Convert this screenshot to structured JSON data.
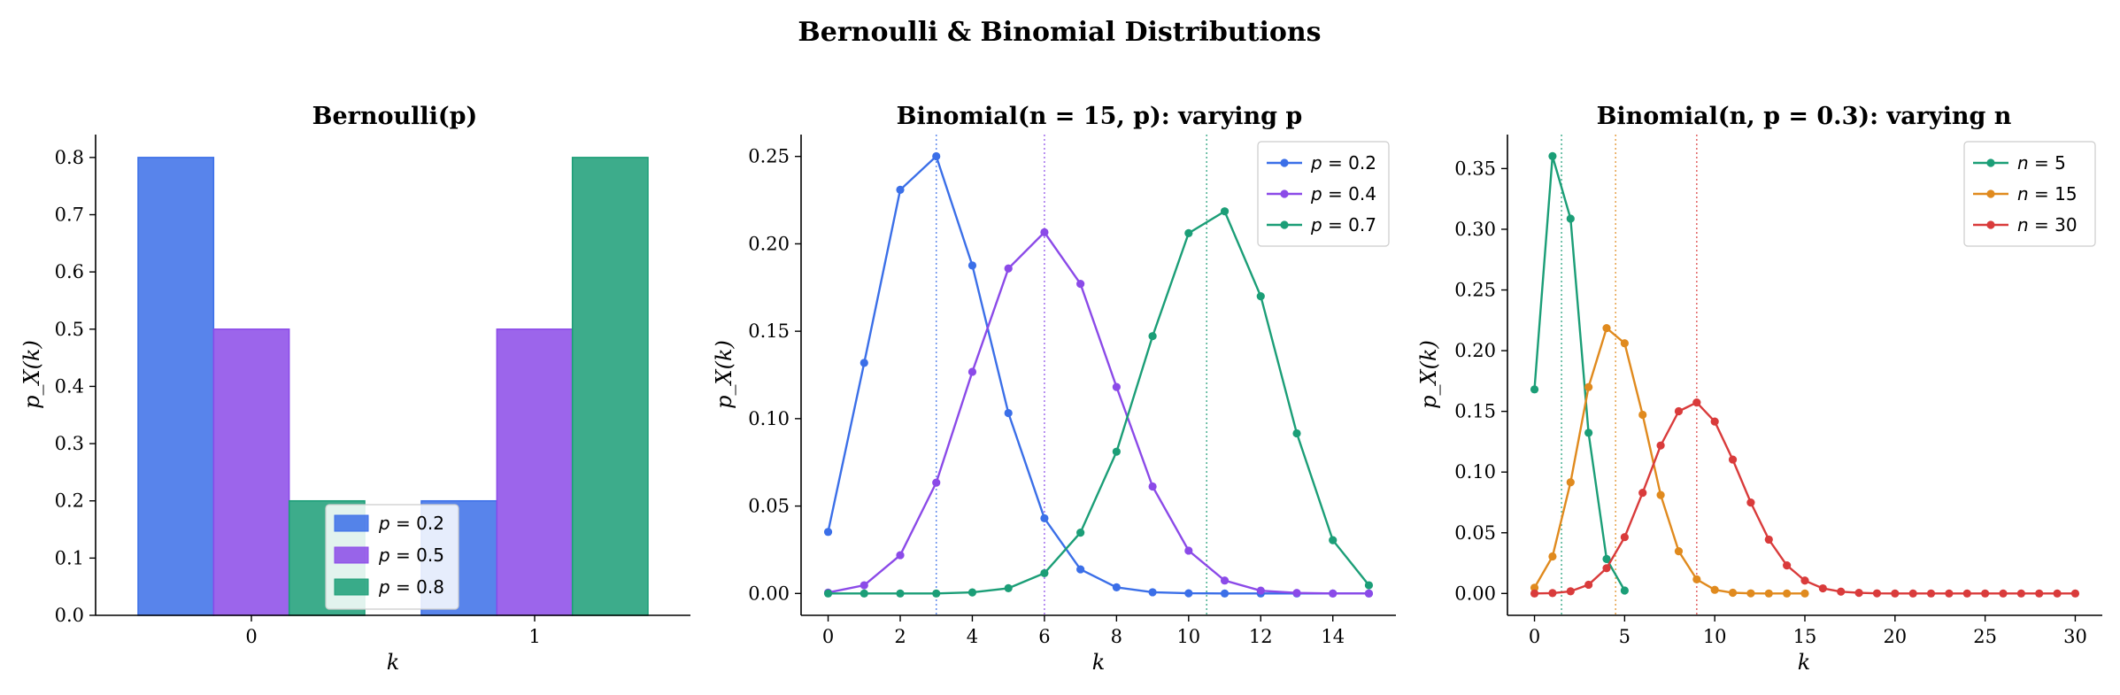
{
  "figure": {
    "title": "Bernoulli & Binomial Distributions"
  },
  "colors": {
    "blue": "#3b6fe8",
    "purple": "#8b4ae8",
    "green": "#1b9e77",
    "orange": "#e08a1e",
    "red": "#d93b3b"
  },
  "chart_data": [
    {
      "type": "bar",
      "title": "Bernoulli(p)",
      "xlabel": "k",
      "ylabel": "p_X(k)",
      "categories": [
        "0",
        "1"
      ],
      "ylim": [
        0,
        0.84
      ],
      "yticks": [
        "0.0",
        "0.1",
        "0.2",
        "0.3",
        "0.4",
        "0.5",
        "0.6",
        "0.7",
        "0.8"
      ],
      "legend_position": "lower center",
      "series": [
        {
          "name": "p = 0.2",
          "color": "blue",
          "values": [
            0.8,
            0.2
          ]
        },
        {
          "name": "p = 0.5",
          "color": "purple",
          "values": [
            0.5,
            0.5
          ]
        },
        {
          "name": "p = 0.8",
          "color": "green",
          "values": [
            0.2,
            0.8
          ]
        }
      ]
    },
    {
      "type": "line",
      "title": "Binomial(n = 15, p): varying p",
      "xlabel": "k",
      "ylabel": "p_X(k)",
      "xlim": [
        -0.75,
        15.75
      ],
      "ylim": [
        -0.0125,
        0.2625
      ],
      "xticks": [
        "0",
        "2",
        "4",
        "6",
        "8",
        "10",
        "12",
        "14"
      ],
      "yticks": [
        "0.00",
        "0.05",
        "0.10",
        "0.15",
        "0.20",
        "0.25"
      ],
      "legend_position": "upper right",
      "x": [
        0,
        1,
        2,
        3,
        4,
        5,
        6,
        7,
        8,
        9,
        10,
        11,
        12,
        13,
        14,
        15
      ],
      "series": [
        {
          "name": "p = 0.2",
          "color": "blue",
          "mean": 3.0,
          "values": [
            0.0352,
            0.1319,
            0.2309,
            0.2501,
            0.1876,
            0.1032,
            0.043,
            0.0138,
            0.0035,
            0.0007,
            0.0001,
            0.0,
            0.0,
            0.0,
            0.0,
            0.0
          ]
        },
        {
          "name": "p = 0.4",
          "color": "purple",
          "mean": 6.0,
          "values": [
            0.0005,
            0.0047,
            0.0219,
            0.0634,
            0.1268,
            0.1859,
            0.2066,
            0.1771,
            0.1181,
            0.0612,
            0.0245,
            0.0074,
            0.0016,
            0.0003,
            0.0,
            0.0
          ]
        },
        {
          "name": "p = 0.7",
          "color": "green",
          "mean": 10.5,
          "values": [
            0.0,
            0.0,
            0.0,
            0.0,
            0.0006,
            0.003,
            0.0116,
            0.0348,
            0.0811,
            0.1472,
            0.2061,
            0.2186,
            0.17,
            0.0916,
            0.0305,
            0.0047
          ]
        }
      ]
    },
    {
      "type": "line",
      "title": "Binomial(n, p = 0.3): varying n",
      "xlabel": "k",
      "ylabel": "p_X(k)",
      "xlim": [
        -1.5,
        31.5
      ],
      "ylim": [
        -0.018,
        0.378
      ],
      "xticks": [
        "0",
        "5",
        "10",
        "15",
        "20",
        "25",
        "30"
      ],
      "yticks": [
        "0.00",
        "0.05",
        "0.10",
        "0.15",
        "0.20",
        "0.25",
        "0.30",
        "0.35"
      ],
      "legend_position": "upper right",
      "series": [
        {
          "name": "n = 5",
          "color": "green",
          "mean": 1.5,
          "values": [
            0.1681,
            0.3602,
            0.3087,
            0.1323,
            0.0284,
            0.0024
          ]
        },
        {
          "name": "n = 15",
          "color": "orange",
          "mean": 4.5,
          "values": [
            0.0047,
            0.0305,
            0.0916,
            0.17,
            0.2186,
            0.2061,
            0.1472,
            0.0811,
            0.0348,
            0.0116,
            0.003,
            0.0006,
            0.0001,
            0.0,
            0.0,
            0.0
          ]
        },
        {
          "name": "n = 30",
          "color": "red",
          "mean": 9.0,
          "values": [
            0.0,
            0.0003,
            0.0018,
            0.0072,
            0.0208,
            0.0464,
            0.0829,
            0.1219,
            0.1501,
            0.1573,
            0.1416,
            0.1103,
            0.0749,
            0.0444,
            0.0231,
            0.0106,
            0.0042,
            0.0015,
            0.0005,
            0.0001,
            0.0,
            0.0,
            0.0,
            0.0,
            0.0,
            0.0,
            0.0,
            0.0,
            0.0,
            0.0,
            0.0
          ]
        }
      ]
    }
  ]
}
